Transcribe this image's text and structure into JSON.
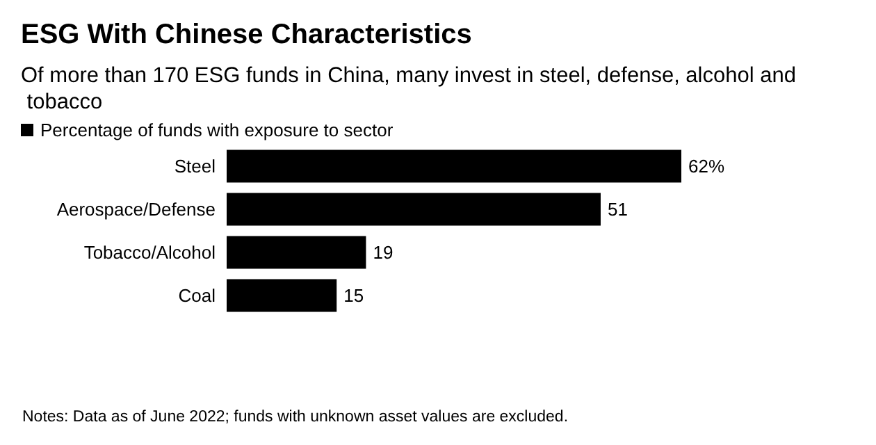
{
  "chart_data": {
    "type": "bar",
    "orientation": "horizontal",
    "title": "ESG With Chinese Characteristics",
    "subtitle": "Of more than 170 ESG funds in China, many invest in steel, defense, alcohol and tobacco",
    "categories": [
      "Steel",
      "Aerospace/Defense",
      "Tobacco/Alcohol",
      "Coal"
    ],
    "series": [
      {
        "name": "Percentage of funds with exposure to sector",
        "color": "#000000",
        "values": [
          62,
          51,
          19,
          15
        ],
        "value_labels": [
          "62%",
          "51",
          "19",
          "15"
        ]
      }
    ],
    "legend": "top left",
    "annotations": [
      "Notes: Data as of June 2022; funds with unknown asset values are excluded."
    ]
  }
}
